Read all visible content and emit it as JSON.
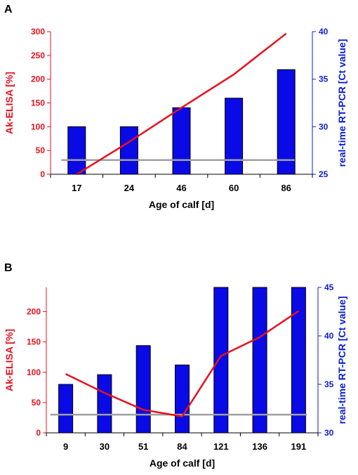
{
  "chart_data": [
    {
      "panel": "A",
      "type": "bar+line",
      "xlabel": "Age of calf [d]",
      "ylabel_left": "Ak-ELISA [%]",
      "ylabel_right": "real-time RT-PCR [Ct value]",
      "categories": [
        "17",
        "24",
        "46",
        "60",
        "86"
      ],
      "left_ticks": [
        "0",
        "50",
        "100",
        "150",
        "200",
        "250",
        "300"
      ],
      "right_ticks": [
        "25",
        "30",
        "35",
        "40"
      ],
      "ylim_left": [
        0,
        300
      ],
      "ylim_right": [
        25,
        40
      ],
      "series": [
        {
          "kind": "bar",
          "axis": "right",
          "values": [
            30,
            30,
            32,
            33,
            36
          ]
        },
        {
          "kind": "line",
          "axis": "left",
          "values": [
            0,
            68,
            140,
            210,
            296
          ]
        },
        {
          "kind": "cutoff",
          "axis": "left",
          "values": [
            30,
            30,
            30,
            30,
            30
          ]
        }
      ],
      "colors": {
        "bars": "#0a0ae6",
        "line": "#e8101e",
        "cutoff": "#a0a0a0",
        "left_axis": "#e8101e",
        "right_axis": "#0a1ed2"
      }
    },
    {
      "panel": "B",
      "type": "bar+line",
      "xlabel": "Age of calf [d]",
      "ylabel_left": "Ak-ELISA [%]",
      "ylabel_right": "real-time RT-PCR [Ct value]",
      "categories": [
        "9",
        "30",
        "51",
        "84",
        "121",
        "136",
        "191"
      ],
      "left_ticks": [
        "0",
        "50",
        "100",
        "150",
        "200"
      ],
      "right_ticks": [
        "30",
        "35",
        "40",
        "45"
      ],
      "ylim_left": [
        0,
        240
      ],
      "ylim_right": [
        30,
        45
      ],
      "series": [
        {
          "kind": "bar",
          "axis": "right",
          "values": [
            35,
            36,
            39,
            37,
            45,
            45,
            45
          ]
        },
        {
          "kind": "line",
          "axis": "left",
          "values": [
            97,
            66,
            38,
            27,
            127,
            158,
            201
          ]
        },
        {
          "kind": "cutoff",
          "axis": "left",
          "values": [
            30,
            30,
            30,
            30,
            30,
            30,
            30
          ]
        }
      ],
      "colors": {
        "bars": "#0a0ae6",
        "line": "#e8101e",
        "cutoff": "#a0a0a0",
        "left_axis": "#e8101e",
        "right_axis": "#0a1ed2"
      }
    }
  ]
}
